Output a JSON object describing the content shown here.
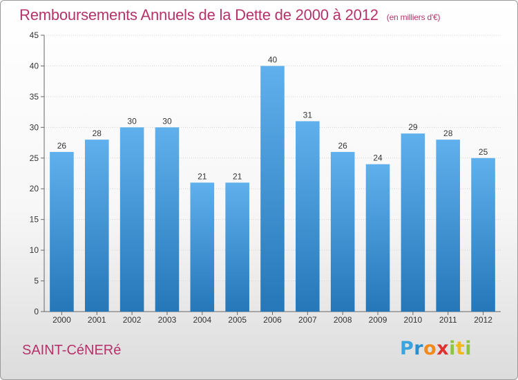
{
  "title": "Remboursements Annuels de la Dette de 2000 à 2012",
  "title_unit": "(en milliers d'€)",
  "city": "SAINT-CéNERé",
  "logo": {
    "letters": [
      {
        "ch": "P",
        "color": "#3aa5dc"
      },
      {
        "ch": "r",
        "color": "#2b8fce"
      },
      {
        "ch": "o",
        "color": "#f08a1c"
      },
      {
        "ch": "x",
        "color": "#e0312f"
      },
      {
        "ch": "i",
        "color": "#8cc63f"
      },
      {
        "ch": "t",
        "color": "#f3b71b"
      },
      {
        "ch": "i",
        "color": "#8cc63f"
      }
    ]
  },
  "colors": {
    "bar_top": "#5fb0ec",
    "bar_bottom": "#2577b8",
    "title": "#b5326a"
  },
  "chart_data": {
    "type": "bar",
    "title": "Remboursements Annuels de la Dette de 2000 à 2012",
    "ylabel": "",
    "xlabel": "",
    "categories": [
      "2000",
      "2001",
      "2002",
      "2003",
      "2004",
      "2005",
      "2006",
      "2007",
      "2008",
      "2009",
      "2010",
      "2011",
      "2012"
    ],
    "values": [
      26,
      28,
      30,
      30,
      21,
      21,
      40,
      31,
      26,
      24,
      29,
      28,
      25
    ],
    "ylim": [
      0,
      45
    ],
    "yticks": [
      0,
      5,
      10,
      15,
      20,
      25,
      30,
      35,
      40,
      45
    ],
    "grid": true,
    "legend": "none"
  }
}
